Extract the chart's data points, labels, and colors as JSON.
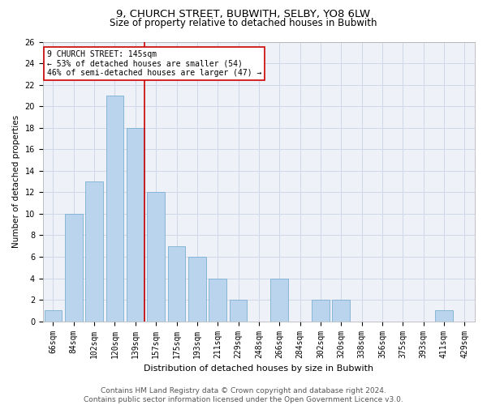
{
  "title1": "9, CHURCH STREET, BUBWITH, SELBY, YO8 6LW",
  "title2": "Size of property relative to detached houses in Bubwith",
  "xlabel": "Distribution of detached houses by size in Bubwith",
  "ylabel": "Number of detached properties",
  "categories": [
    "66sqm",
    "84sqm",
    "102sqm",
    "120sqm",
    "139sqm",
    "157sqm",
    "175sqm",
    "193sqm",
    "211sqm",
    "229sqm",
    "248sqm",
    "266sqm",
    "284sqm",
    "302sqm",
    "320sqm",
    "338sqm",
    "356sqm",
    "375sqm",
    "393sqm",
    "411sqm",
    "429sqm"
  ],
  "values": [
    1,
    10,
    13,
    21,
    18,
    12,
    7,
    6,
    4,
    2,
    0,
    4,
    0,
    2,
    2,
    0,
    0,
    0,
    0,
    1,
    0
  ],
  "bar_color": "#bad4ed",
  "bar_edgecolor": "#7aafd4",
  "property_line_index": 4,
  "property_line_color": "#cc0000",
  "annotation_text": "9 CHURCH STREET: 145sqm\n← 53% of detached houses are smaller (54)\n46% of semi-detached houses are larger (47) →",
  "annotation_box_color": "#ffffff",
  "annotation_box_edgecolor": "#cc0000",
  "ylim": [
    0,
    26
  ],
  "yticks": [
    0,
    2,
    4,
    6,
    8,
    10,
    12,
    14,
    16,
    18,
    20,
    22,
    24,
    26
  ],
  "grid_color": "#d0d8e8",
  "background_color": "#eef2f8",
  "footer_text": "Contains HM Land Registry data © Crown copyright and database right 2024.\nContains public sector information licensed under the Open Government Licence v3.0.",
  "title1_fontsize": 9.5,
  "title2_fontsize": 8.5,
  "xlabel_fontsize": 8,
  "ylabel_fontsize": 7.5,
  "tick_fontsize": 7,
  "annotation_fontsize": 7,
  "footer_fontsize": 6.5
}
